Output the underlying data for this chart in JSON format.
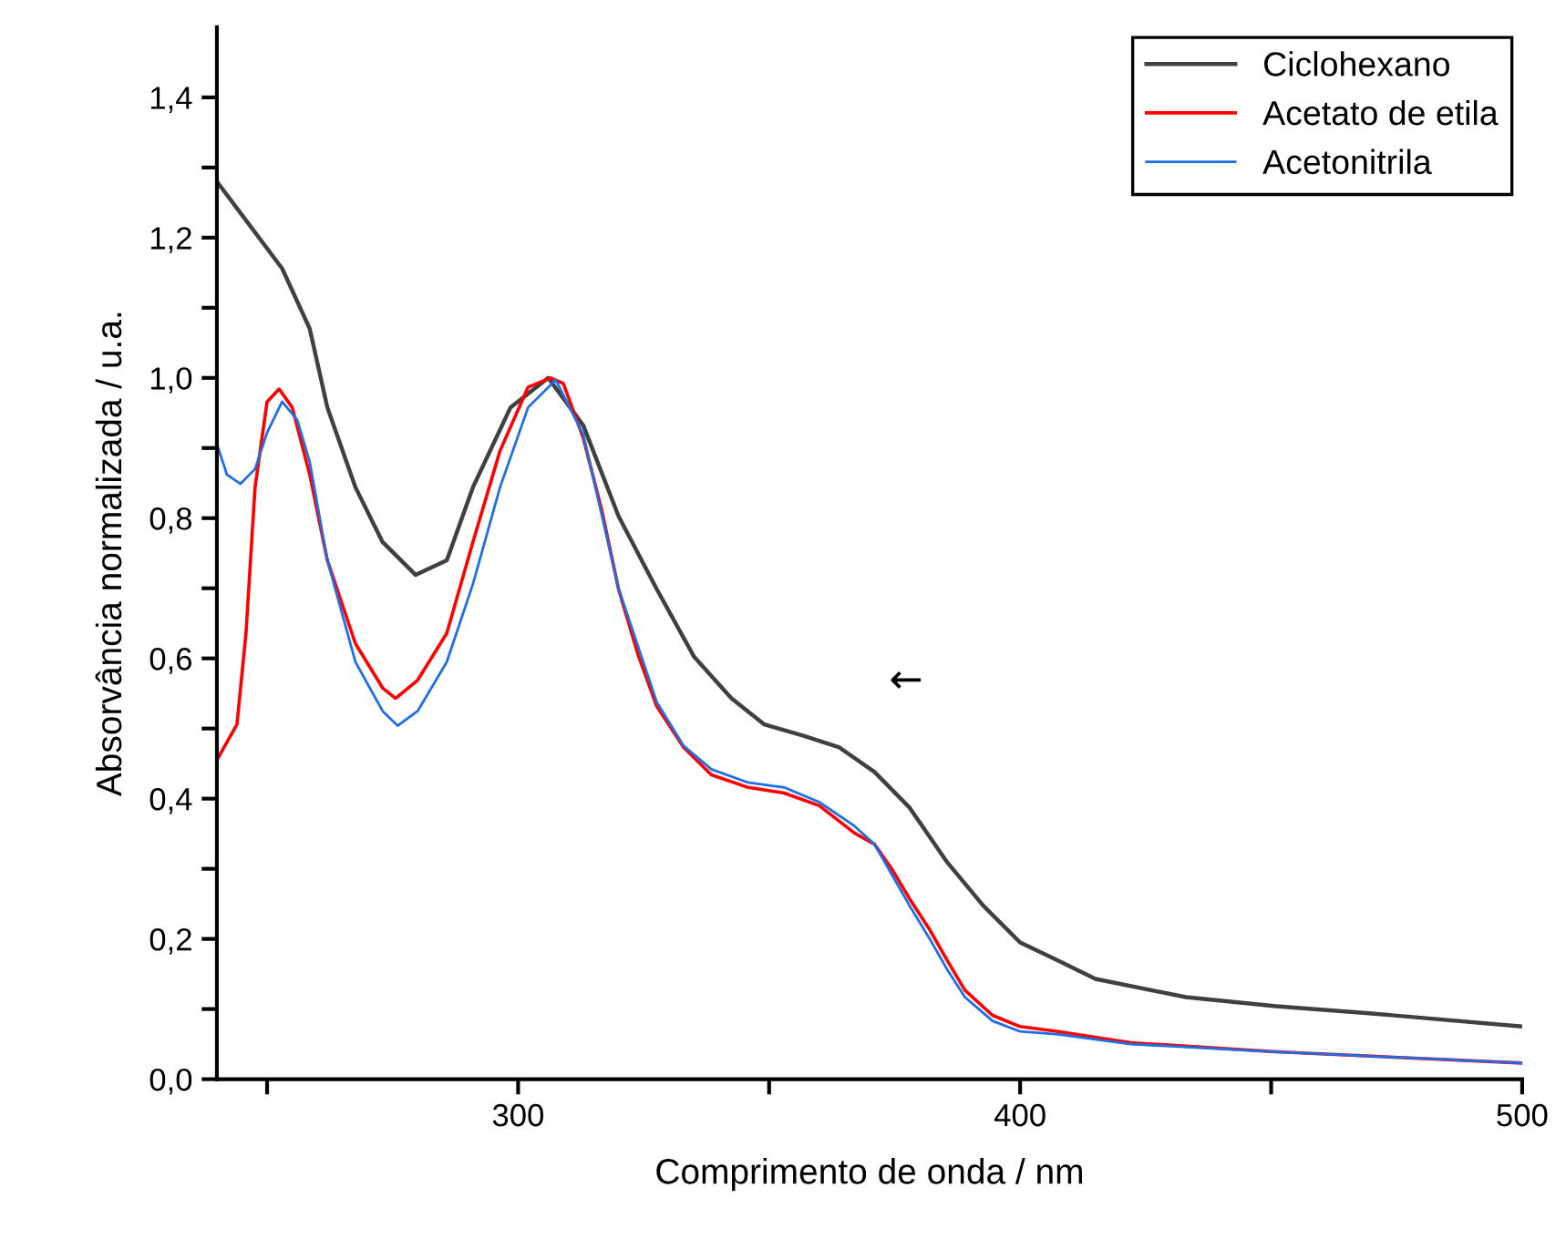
{
  "chart_data": {
    "type": "line",
    "xlabel": "Comprimento de onda / nm",
    "ylabel": "Absorvância normalizada / u.a.",
    "xlim": [
      240,
      500
    ],
    "xticks": [
      {
        "value": 250,
        "label": null
      },
      300,
      {
        "value": 350,
        "label": null
      },
      400,
      {
        "value": 450,
        "label": null
      },
      500
    ],
    "ylim": [
      0,
      1.5
    ],
    "yticks": [
      {
        "value": 0,
        "label": "0,0"
      },
      {
        "value": 0.1,
        "label": null
      },
      {
        "value": 0.2,
        "label": "0,2"
      },
      {
        "value": 0.3,
        "label": null
      },
      {
        "value": 0.4,
        "label": "0,4"
      },
      {
        "value": 0.5,
        "label": null
      },
      {
        "value": 0.6,
        "label": "0,6"
      },
      {
        "value": 0.7,
        "label": null
      },
      {
        "value": 0.8,
        "label": "0,8"
      },
      {
        "value": 0.9,
        "label": null
      },
      {
        "value": 1.0,
        "label": "1,0"
      },
      {
        "value": 1.1,
        "label": null
      },
      {
        "value": 1.2,
        "label": "1,2"
      },
      {
        "value": 1.3,
        "label": null
      },
      {
        "value": 1.4,
        "label": "1,4"
      }
    ],
    "grid": false,
    "legend": "top right",
    "marker": "none",
    "line_style": "solid",
    "annotations": [
      "←"
    ],
    "series": [
      {
        "name": "Ciclohexano",
        "color": "#404040",
        "x": [
          240,
          253,
          258.5,
          262,
          267.6,
          273,
          279.6,
          285.8,
          291,
          298.5,
          306,
          313,
          320,
          327.6,
          335,
          342.5,
          349,
          356.7,
          364,
          371,
          378,
          385.5,
          392.7,
          400,
          407.6,
          415,
          433,
          451,
          469.5,
          500
        ],
        "values": [
          1.28,
          1.156,
          1.07,
          0.958,
          0.844,
          0.766,
          0.719,
          0.74,
          0.844,
          0.958,
          1.0,
          0.932,
          0.803,
          0.699,
          0.603,
          0.543,
          0.506,
          0.49,
          0.473,
          0.438,
          0.387,
          0.309,
          0.247,
          0.195,
          0.169,
          0.143,
          0.117,
          0.104,
          0.094,
          0.075
        ]
      },
      {
        "name": "Acetato de etila",
        "color": "#ff0000",
        "x": [
          240,
          244,
          245.8,
          247.6,
          250,
          252.4,
          255,
          258.5,
          262,
          267.6,
          273,
          275.6,
          280,
          285.8,
          291,
          296.4,
          302,
          306.5,
          309,
          313,
          316.7,
          320,
          324,
          327.6,
          333,
          338.5,
          345.8,
          353,
          360,
          367,
          371,
          374.5,
          378,
          382,
          385.5,
          389,
          394.5,
          400,
          407.6,
          422,
          451,
          500
        ],
        "values": [
          0.455,
          0.506,
          0.636,
          0.844,
          0.966,
          0.984,
          0.958,
          0.862,
          0.74,
          0.621,
          0.558,
          0.543,
          0.569,
          0.636,
          0.766,
          0.896,
          0.987,
          1.0,
          0.992,
          0.914,
          0.81,
          0.699,
          0.603,
          0.532,
          0.473,
          0.434,
          0.416,
          0.408,
          0.39,
          0.351,
          0.335,
          0.299,
          0.257,
          0.213,
          0.169,
          0.127,
          0.091,
          0.075,
          0.068,
          0.052,
          0.039,
          0.023
        ]
      },
      {
        "name": "Acetonitrila",
        "color": "#1e6ee6",
        "x": [
          240,
          242,
          244.7,
          247.6,
          250,
          253,
          256,
          258.5,
          262,
          267.6,
          273,
          276,
          280,
          285.8,
          291,
          296.4,
          302,
          307.5,
          313,
          320,
          327.6,
          333,
          338.5,
          345.8,
          353,
          360,
          367,
          371,
          374.5,
          378,
          382,
          385.5,
          389,
          394.5,
          400,
          407.6,
          422,
          451,
          500
        ],
        "values": [
          0.906,
          0.862,
          0.849,
          0.87,
          0.922,
          0.966,
          0.94,
          0.88,
          0.74,
          0.595,
          0.525,
          0.504,
          0.525,
          0.595,
          0.706,
          0.844,
          0.958,
          0.997,
          0.919,
          0.7,
          0.538,
          0.475,
          0.442,
          0.423,
          0.416,
          0.395,
          0.361,
          0.335,
          0.291,
          0.247,
          0.2,
          0.156,
          0.117,
          0.083,
          0.068,
          0.064,
          0.05,
          0.039,
          0.023
        ]
      }
    ]
  }
}
